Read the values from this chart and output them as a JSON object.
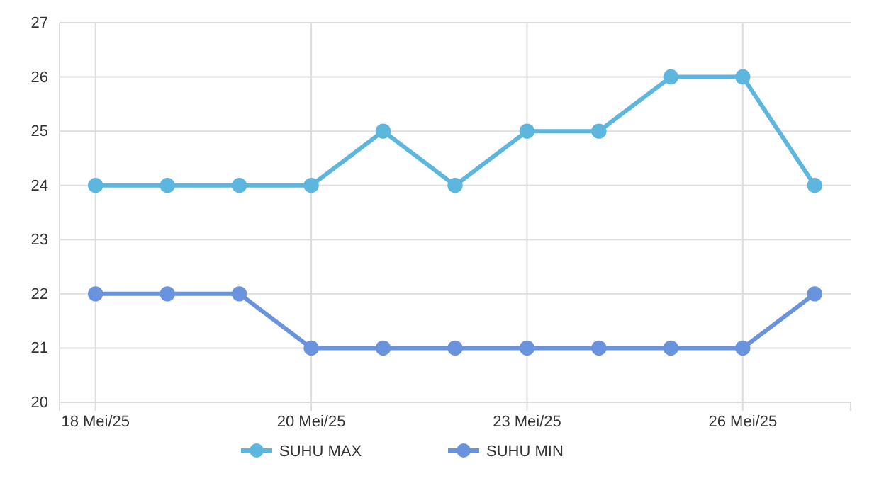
{
  "chart_data": {
    "type": "line",
    "categories": [
      "18 Mei/25",
      null,
      null,
      "20 Mei/25",
      null,
      null,
      "23 Mei/25",
      null,
      null,
      "26 Mei/25",
      null
    ],
    "series": [
      {
        "name": "SUHU MAX",
        "color": "#5cb6de",
        "values": [
          24,
          24,
          24,
          24,
          25,
          24,
          25,
          25,
          26,
          26,
          24
        ]
      },
      {
        "name": "SUHU MIN",
        "color": "#6a93dd",
        "values": [
          22,
          22,
          22,
          21,
          21,
          21,
          21,
          21,
          21,
          21,
          22
        ]
      }
    ],
    "ylim": [
      20,
      27
    ],
    "yticks": [
      20,
      21,
      22,
      23,
      24,
      25,
      26,
      27
    ],
    "grid": true,
    "legend": "bottom",
    "marker": "circle",
    "line_style": "solid"
  }
}
